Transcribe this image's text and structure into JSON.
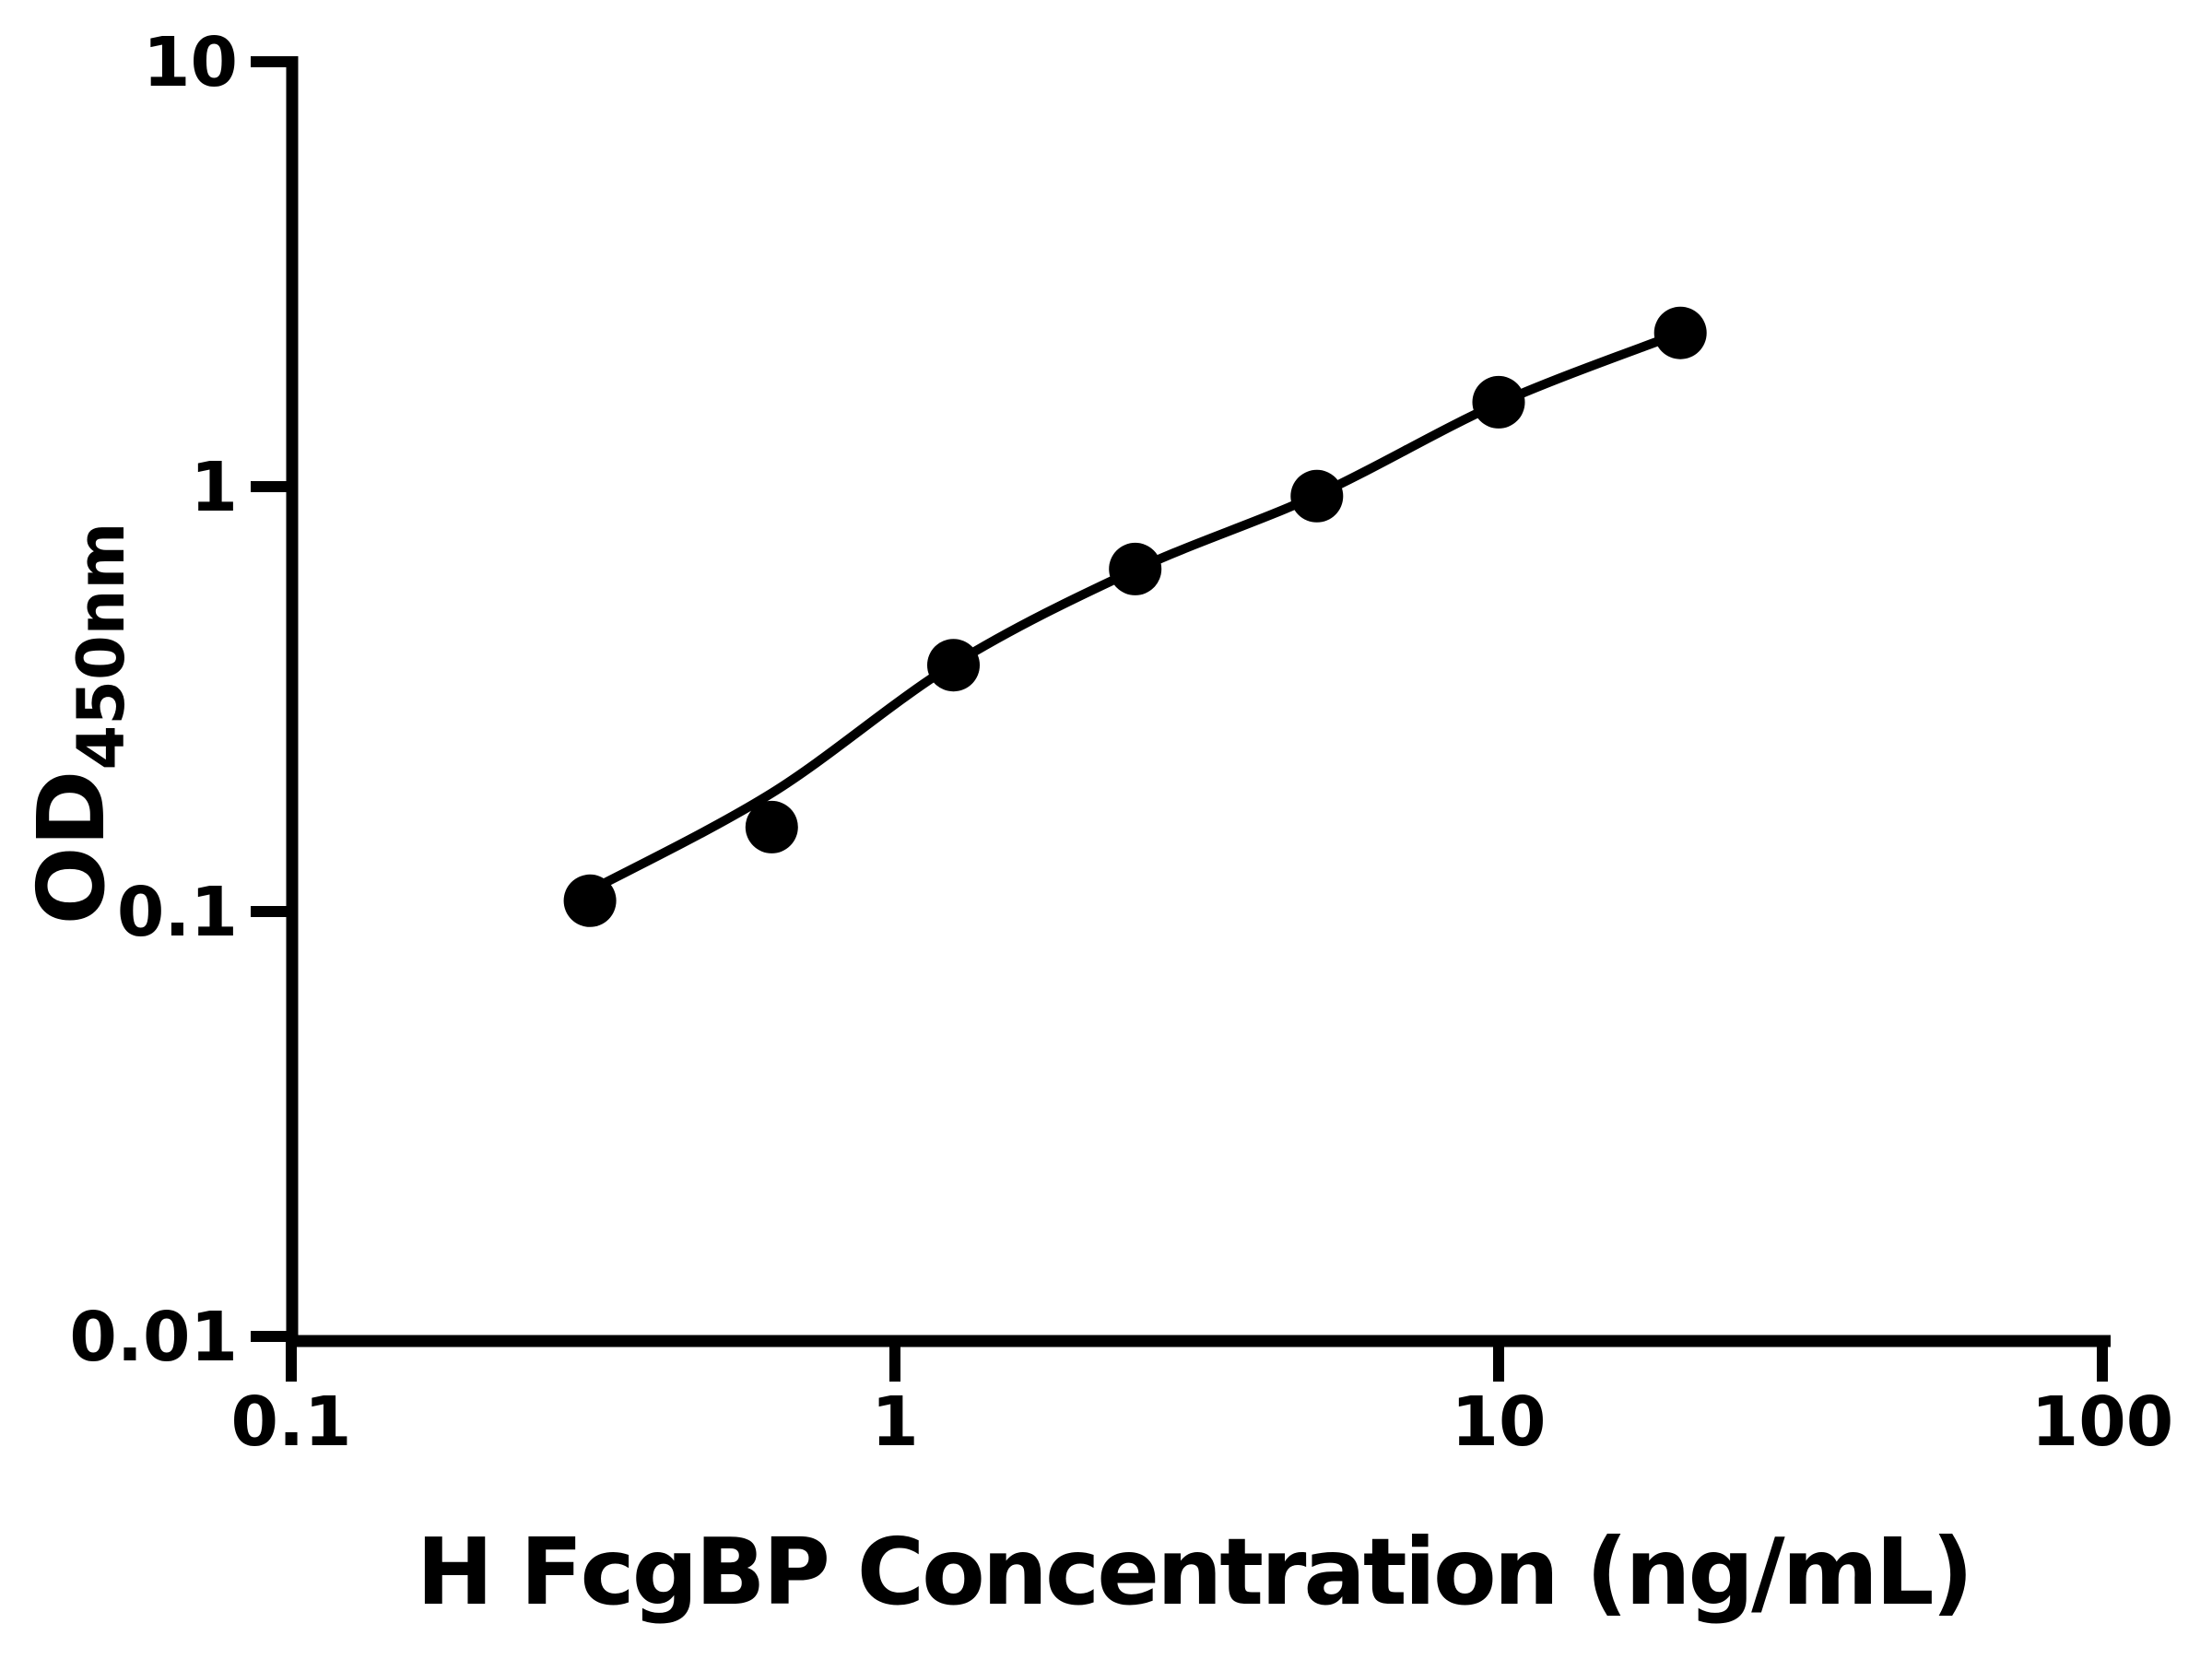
{
  "chart_data": {
    "type": "scatter",
    "title": "",
    "xlabel": "H FcgBP Concentration (ng/mL)",
    "ylabel": "OD450nm",
    "ylabel_main": "OD",
    "ylabel_sub": "450nm",
    "x_scale": "log",
    "y_scale": "log",
    "xlim": [
      0.1,
      100
    ],
    "ylim": [
      0.01,
      10
    ],
    "grid": false,
    "legend": false,
    "x_ticks": [
      {
        "value": 0.1,
        "label": "0.1"
      },
      {
        "value": 1,
        "label": "1"
      },
      {
        "value": 10,
        "label": "10"
      },
      {
        "value": 100,
        "label": "100"
      }
    ],
    "y_ticks": [
      {
        "value": 0.01,
        "label": "0.01"
      },
      {
        "value": 0.1,
        "label": "0.1"
      },
      {
        "value": 1,
        "label": "1"
      },
      {
        "value": 10,
        "label": "10"
      }
    ],
    "series": [
      {
        "marker": "circle",
        "color": "#000000",
        "x": [
          0.3125,
          0.625,
          1.25,
          2.5,
          5,
          10,
          20
        ],
        "od": [
          0.106,
          0.158,
          0.38,
          0.64,
          0.95,
          1.58,
          2.3
        ]
      }
    ],
    "fit_curve": {
      "color": "#000000",
      "x": [
        0.3125,
        0.625,
        1.25,
        2.5,
        5,
        10,
        20
      ],
      "od": [
        0.112,
        0.19,
        0.382,
        0.637,
        0.955,
        1.57,
        2.3
      ]
    },
    "colors": {
      "axis": "#000000",
      "marker": "#000000",
      "background": "#ffffff"
    }
  }
}
